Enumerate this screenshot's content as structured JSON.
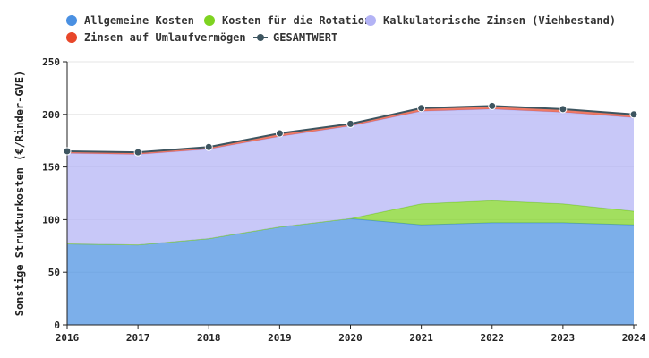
{
  "chart_data": {
    "type": "area",
    "stacked": true,
    "x": [
      2016,
      2017,
      2018,
      2019,
      2020,
      2021,
      2022,
      2023,
      2024
    ],
    "ylabel": "Sonstige Strukturkosten (€/Rinder-GVE)",
    "xlabel": "",
    "ylim": [
      0,
      250
    ],
    "yticks": [
      0,
      50,
      100,
      150,
      200,
      250
    ],
    "grid": true,
    "legend_position": "top-left",
    "series": [
      {
        "name": "Allgemeine Kosten",
        "color": "#4a90e2",
        "values": [
          77,
          76,
          82,
          93,
          101,
          95,
          97,
          97,
          95
        ]
      },
      {
        "name": "Kosten für die Rotation",
        "color": "#7ed321",
        "values": [
          0,
          0,
          0,
          0,
          0,
          20,
          21,
          18,
          13
        ]
      },
      {
        "name": "Kalkulatorische Zinsen (Viehbestand)",
        "color": "#b3b3f5",
        "values": [
          86,
          86,
          85,
          86,
          88,
          88,
          87,
          87,
          89
        ]
      },
      {
        "name": "Zinsen auf Umlaufvermögen",
        "color": "#e8472a",
        "values": [
          2,
          2,
          2,
          3,
          2,
          3,
          3,
          3,
          3
        ]
      }
    ],
    "total": {
      "name": "GESAMTWERT",
      "color": "#3d5560",
      "values": [
        165,
        164,
        169,
        182,
        191,
        206,
        208,
        205,
        200
      ]
    }
  }
}
